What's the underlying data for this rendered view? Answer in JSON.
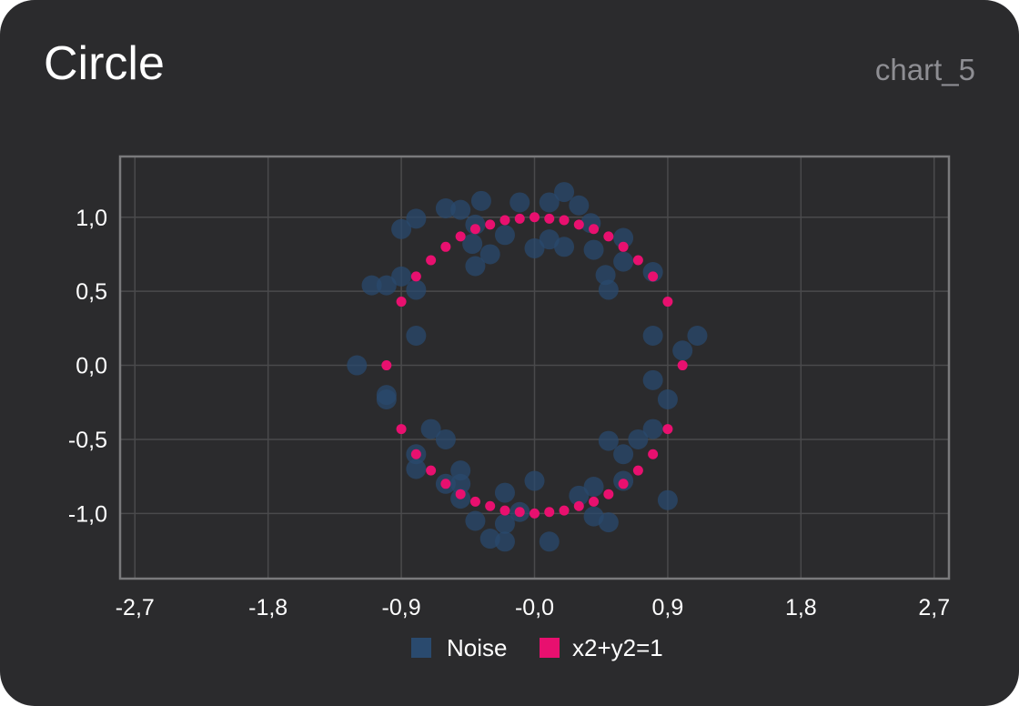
{
  "header": {
    "title": "Circle",
    "chart_id": "chart_5"
  },
  "colors": {
    "background": "#2b2b2d",
    "grid": "#4a4a4c",
    "frame": "#7a7a7c",
    "noise": "#2a4a6e",
    "circle": "#e8106f"
  },
  "chart_data": {
    "type": "scatter",
    "title": "Circle",
    "xlabel": "",
    "ylabel": "",
    "xlim": [
      -2.8,
      2.8
    ],
    "ylim": [
      -1.44,
      1.41
    ],
    "xticks": [
      "-2,7",
      "-1,8",
      "-0,9",
      "-0,0",
      "0,9",
      "1,8",
      "2,7"
    ],
    "xtick_values": [
      -2.7,
      -1.8,
      -0.9,
      0.0,
      0.9,
      1.8,
      2.7
    ],
    "yticks": [
      "1,0",
      "0,5",
      "0,0",
      "-0,5",
      "-1,0"
    ],
    "ytick_values": [
      1.0,
      0.5,
      0.0,
      -0.5,
      -1.0
    ],
    "grid": true,
    "legend": "bottom",
    "series": [
      {
        "name": "Noise",
        "color": "#2a4a6e",
        "points": [
          [
            -0.6,
            1.06
          ],
          [
            -0.5,
            1.05
          ],
          [
            -0.36,
            1.11
          ],
          [
            -0.1,
            1.1
          ],
          [
            0.1,
            1.1
          ],
          [
            0.2,
            1.17
          ],
          [
            0.3,
            1.08
          ],
          [
            -0.9,
            0.92
          ],
          [
            -0.8,
            0.99
          ],
          [
            -0.4,
            0.95
          ],
          [
            0.38,
            0.96
          ],
          [
            0.6,
            0.86
          ],
          [
            -0.2,
            0.88
          ],
          [
            0.1,
            0.85
          ],
          [
            -0.42,
            0.82
          ],
          [
            0.0,
            0.79
          ],
          [
            0.2,
            0.8
          ],
          [
            -0.3,
            0.75
          ],
          [
            0.4,
            0.78
          ],
          [
            0.6,
            0.7
          ],
          [
            -0.4,
            0.67
          ],
          [
            -1.1,
            0.54
          ],
          [
            -1.0,
            0.54
          ],
          [
            -0.9,
            0.6
          ],
          [
            -0.8,
            0.51
          ],
          [
            0.48,
            0.61
          ],
          [
            0.8,
            0.63
          ],
          [
            0.5,
            0.51
          ],
          [
            -0.8,
            0.2
          ],
          [
            0.8,
            0.2
          ],
          [
            1.0,
            0.1
          ],
          [
            1.1,
            0.2
          ],
          [
            -1.2,
            0.0
          ],
          [
            0.8,
            -0.1
          ],
          [
            -1.0,
            -0.2
          ],
          [
            -1.0,
            -0.23
          ],
          [
            0.9,
            -0.23
          ],
          [
            -0.7,
            -0.43
          ],
          [
            -0.6,
            -0.5
          ],
          [
            0.8,
            -0.43
          ],
          [
            0.7,
            -0.5
          ],
          [
            0.5,
            -0.51
          ],
          [
            -0.8,
            -0.6
          ],
          [
            0.6,
            -0.6
          ],
          [
            -0.8,
            -0.7
          ],
          [
            -0.5,
            -0.71
          ],
          [
            -0.6,
            -0.8
          ],
          [
            -0.5,
            -0.8
          ],
          [
            0.6,
            -0.78
          ],
          [
            0.4,
            -0.82
          ],
          [
            0.0,
            -0.78
          ],
          [
            -0.5,
            -0.9
          ],
          [
            -0.2,
            -0.86
          ],
          [
            0.3,
            -0.88
          ],
          [
            0.9,
            -0.91
          ],
          [
            -0.1,
            -0.99
          ],
          [
            0.4,
            -1.02
          ],
          [
            -0.4,
            -1.05
          ],
          [
            -0.2,
            -1.07
          ],
          [
            0.5,
            -1.06
          ],
          [
            -0.3,
            -1.17
          ],
          [
            -0.2,
            -1.19
          ],
          [
            0.1,
            -1.19
          ]
        ]
      },
      {
        "name": "x2+y2=1",
        "color": "#e8106f",
        "points": [
          [
            1.0,
            0.0
          ],
          [
            0.9,
            0.43
          ],
          [
            0.8,
            0.6
          ],
          [
            0.7,
            0.71
          ],
          [
            0.6,
            0.8
          ],
          [
            0.5,
            0.87
          ],
          [
            0.4,
            0.92
          ],
          [
            0.3,
            0.95
          ],
          [
            0.2,
            0.98
          ],
          [
            0.1,
            0.99
          ],
          [
            0.0,
            1.0
          ],
          [
            -0.1,
            0.99
          ],
          [
            -0.2,
            0.98
          ],
          [
            -0.3,
            0.95
          ],
          [
            -0.4,
            0.92
          ],
          [
            -0.5,
            0.87
          ],
          [
            -0.6,
            0.8
          ],
          [
            -0.7,
            0.71
          ],
          [
            -0.8,
            0.6
          ],
          [
            -0.9,
            0.43
          ],
          [
            -1.0,
            0.0
          ],
          [
            -0.9,
            -0.43
          ],
          [
            -0.8,
            -0.6
          ],
          [
            -0.7,
            -0.71
          ],
          [
            -0.6,
            -0.8
          ],
          [
            -0.5,
            -0.87
          ],
          [
            -0.4,
            -0.92
          ],
          [
            -0.3,
            -0.95
          ],
          [
            -0.2,
            -0.98
          ],
          [
            -0.1,
            -0.99
          ],
          [
            0.0,
            -1.0
          ],
          [
            0.1,
            -0.99
          ],
          [
            0.2,
            -0.98
          ],
          [
            0.3,
            -0.95
          ],
          [
            0.4,
            -0.92
          ],
          [
            0.5,
            -0.87
          ],
          [
            0.6,
            -0.8
          ],
          [
            0.7,
            -0.71
          ],
          [
            0.8,
            -0.6
          ],
          [
            0.9,
            -0.43
          ]
        ]
      }
    ]
  }
}
